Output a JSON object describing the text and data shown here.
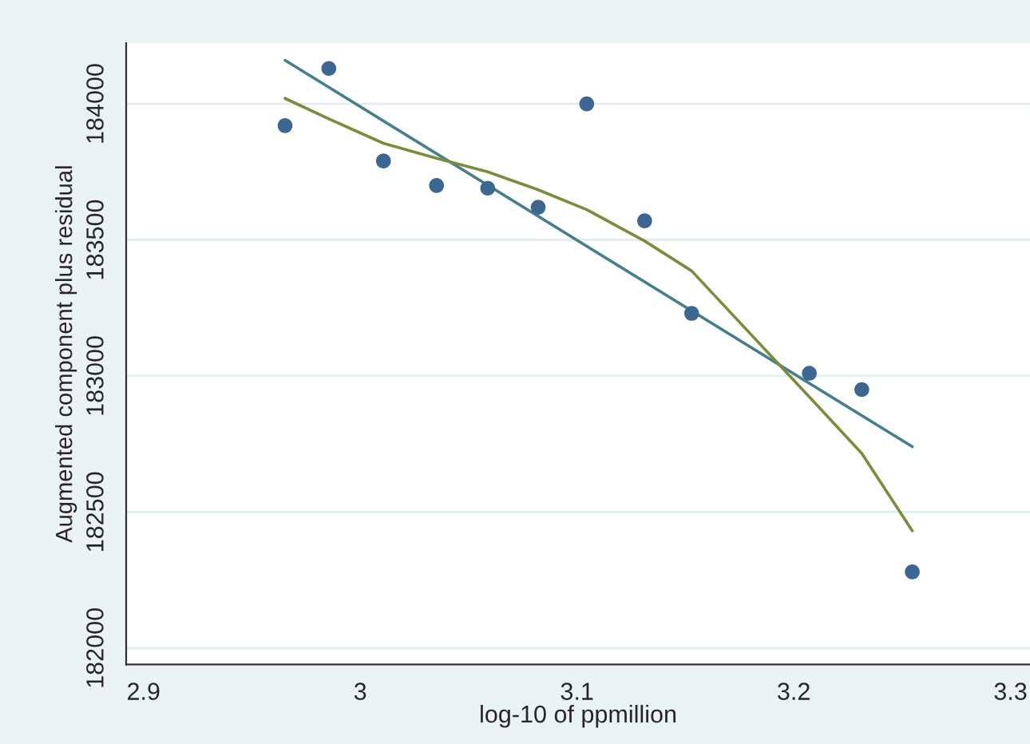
{
  "chart_data": {
    "type": "scatter",
    "xlabel": "log-10 of ppmillion",
    "ylabel": "Augmented component plus residual",
    "xlim": [
      2.892,
      3.309
    ],
    "ylim": [
      181940,
      184223
    ],
    "xticks": [
      2.9,
      3,
      3.1,
      3.2,
      3.3
    ],
    "yticks": [
      182000,
      182500,
      183000,
      183500,
      184000
    ],
    "grid": "y",
    "legend": false,
    "marker": "circle",
    "series": [
      {
        "color": "#3d6791",
        "x": [
          2.9653,
          2.9855,
          3.0107,
          3.0352,
          3.0588,
          3.0821,
          3.1045,
          3.1312,
          3.1529,
          3.2072,
          3.2314,
          3.2547
        ],
        "values": [
          183920,
          184130,
          183790,
          183700,
          183690,
          183620,
          184000,
          183570,
          183230,
          183010,
          182950,
          182280
        ]
      },
      {
        "type": "line",
        "color": "#45808a",
        "marker": "none",
        "line_style": "solid",
        "x": [
          2.9653,
          3.2547
        ],
        "values": [
          184160,
          182740
        ]
      },
      {
        "type": "line",
        "color": "#7b8c3e",
        "marker": "none",
        "line_style": "solid",
        "x": [
          2.9653,
          2.9855,
          3.0107,
          3.0352,
          3.0588,
          3.0821,
          3.1045,
          3.1312,
          3.1529,
          3.2072,
          3.2314,
          3.2547
        ],
        "values": [
          184020,
          183945,
          183855,
          183800,
          183750,
          183684,
          183611,
          183496,
          183386,
          182923,
          182715,
          182431
        ]
      }
    ]
  }
}
